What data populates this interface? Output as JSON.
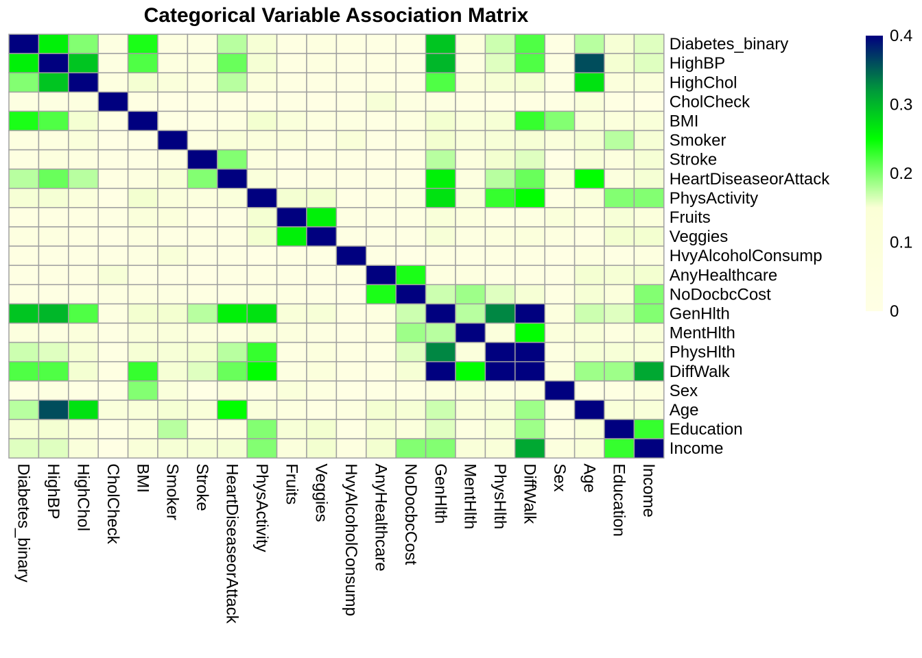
{
  "chart_data": {
    "type": "heatmap",
    "title": "Categorical Variable Association Matrix",
    "variables": [
      "Diabetes_binary",
      "HighBP",
      "HighChol",
      "CholCheck",
      "BMI",
      "Smoker",
      "Stroke",
      "HeartDiseaseorAttack",
      "PhysActivity",
      "Fruits",
      "Veggies",
      "HvyAlcoholConsump",
      "AnyHealthcare",
      "NoDocbcCost",
      "GenHlth",
      "MentHlth",
      "PhysHlth",
      "DiffWalk",
      "Sex",
      "Age",
      "Education",
      "Income"
    ],
    "matrix": [
      [
        0.4,
        0.26,
        0.2,
        0.05,
        0.24,
        0.06,
        0.05,
        0.18,
        0.12,
        0.04,
        0.06,
        0.04,
        0.03,
        0.03,
        0.29,
        0.07,
        0.17,
        0.22,
        0.03,
        0.18,
        0.12,
        0.16
      ],
      [
        0.26,
        0.4,
        0.29,
        0.05,
        0.22,
        0.06,
        0.07,
        0.21,
        0.13,
        0.04,
        0.06,
        0.03,
        0.04,
        0.02,
        0.3,
        0.05,
        0.16,
        0.22,
        0.05,
        0.36,
        0.14,
        0.16
      ],
      [
        0.2,
        0.29,
        0.4,
        0.06,
        0.14,
        0.09,
        0.06,
        0.18,
        0.08,
        0.04,
        0.04,
        0.03,
        0.04,
        0.03,
        0.22,
        0.08,
        0.12,
        0.14,
        0.03,
        0.27,
        0.08,
        0.09
      ],
      [
        0.05,
        0.05,
        0.06,
        0.4,
        0.04,
        0.01,
        0.02,
        0.04,
        0.01,
        0.02,
        0.01,
        0.02,
        0.11,
        0.05,
        0.05,
        0.02,
        0.03,
        0.04,
        0.02,
        0.09,
        0.02,
        0.01
      ],
      [
        0.24,
        0.22,
        0.14,
        0.04,
        0.4,
        0.03,
        0.02,
        0.06,
        0.15,
        0.09,
        0.06,
        0.05,
        0.03,
        0.06,
        0.15,
        0.09,
        0.12,
        0.23,
        0.2,
        0.1,
        0.08,
        0.1
      ],
      [
        0.06,
        0.06,
        0.09,
        0.01,
        0.03,
        0.4,
        0.06,
        0.1,
        0.08,
        0.08,
        0.03,
        0.1,
        0.02,
        0.05,
        0.15,
        0.09,
        0.11,
        0.12,
        0.09,
        0.13,
        0.18,
        0.12
      ],
      [
        0.05,
        0.07,
        0.06,
        0.02,
        0.02,
        0.06,
        0.4,
        0.2,
        0.07,
        0.01,
        0.04,
        0.02,
        0.01,
        0.04,
        0.18,
        0.07,
        0.15,
        0.16,
        0.0,
        0.1,
        0.07,
        0.12
      ],
      [
        0.18,
        0.21,
        0.18,
        0.04,
        0.06,
        0.1,
        0.2,
        0.4,
        0.09,
        0.02,
        0.04,
        0.03,
        0.02,
        0.03,
        0.26,
        0.06,
        0.18,
        0.21,
        0.08,
        0.25,
        0.07,
        0.13
      ],
      [
        0.12,
        0.13,
        0.08,
        0.01,
        0.15,
        0.08,
        0.07,
        0.09,
        0.4,
        0.14,
        0.15,
        0.01,
        0.04,
        0.05,
        0.27,
        0.09,
        0.23,
        0.25,
        0.03,
        0.09,
        0.2,
        0.2
      ],
      [
        0.04,
        0.04,
        0.04,
        0.02,
        0.09,
        0.08,
        0.01,
        0.02,
        0.14,
        0.4,
        0.26,
        0.04,
        0.03,
        0.04,
        0.1,
        0.07,
        0.04,
        0.05,
        0.09,
        0.06,
        0.11,
        0.08
      ],
      [
        0.06,
        0.06,
        0.04,
        0.01,
        0.06,
        0.03,
        0.04,
        0.04,
        0.15,
        0.26,
        0.4,
        0.02,
        0.03,
        0.03,
        0.11,
        0.05,
        0.07,
        0.08,
        0.06,
        0.02,
        0.15,
        0.15
      ],
      [
        0.04,
        0.03,
        0.03,
        0.02,
        0.05,
        0.1,
        0.02,
        0.03,
        0.01,
        0.04,
        0.02,
        0.4,
        0.03,
        0.0,
        0.04,
        0.03,
        0.04,
        0.04,
        0.01,
        0.06,
        0.03,
        0.06
      ],
      [
        0.03,
        0.04,
        0.04,
        0.11,
        0.03,
        0.02,
        0.01,
        0.02,
        0.04,
        0.03,
        0.03,
        0.03,
        0.4,
        0.24,
        0.06,
        0.06,
        0.03,
        0.04,
        0.02,
        0.14,
        0.12,
        0.15
      ],
      [
        0.03,
        0.02,
        0.03,
        0.05,
        0.06,
        0.05,
        0.04,
        0.03,
        0.05,
        0.04,
        0.03,
        0.0,
        0.24,
        0.4,
        0.17,
        0.19,
        0.16,
        0.12,
        0.04,
        0.12,
        0.08,
        0.2
      ],
      [
        0.29,
        0.3,
        0.22,
        0.05,
        0.15,
        0.15,
        0.18,
        0.26,
        0.27,
        0.1,
        0.11,
        0.04,
        0.06,
        0.17,
        0.4,
        0.18,
        0.33,
        0.4,
        0.07,
        0.17,
        0.16,
        0.2
      ],
      [
        0.07,
        0.05,
        0.08,
        0.02,
        0.09,
        0.09,
        0.07,
        0.06,
        0.09,
        0.07,
        0.05,
        0.03,
        0.06,
        0.19,
        0.18,
        0.4,
        0.08,
        0.25,
        0.08,
        0.1,
        0.06,
        0.1
      ],
      [
        0.17,
        0.16,
        0.12,
        0.03,
        0.12,
        0.11,
        0.15,
        0.18,
        0.23,
        0.04,
        0.07,
        0.04,
        0.03,
        0.16,
        0.33,
        0.08,
        0.4,
        0.4,
        0.05,
        0.11,
        0.11,
        0.1
      ],
      [
        0.22,
        0.22,
        0.14,
        0.04,
        0.23,
        0.12,
        0.16,
        0.21,
        0.25,
        0.05,
        0.08,
        0.04,
        0.04,
        0.12,
        0.4,
        0.25,
        0.4,
        0.4,
        0.07,
        0.19,
        0.19,
        0.31
      ],
      [
        0.03,
        0.05,
        0.03,
        0.02,
        0.2,
        0.09,
        0.0,
        0.08,
        0.03,
        0.09,
        0.06,
        0.01,
        0.02,
        0.04,
        0.07,
        0.08,
        0.05,
        0.07,
        0.4,
        0.03,
        0.04,
        0.07
      ],
      [
        0.18,
        0.36,
        0.27,
        0.09,
        0.1,
        0.13,
        0.1,
        0.25,
        0.09,
        0.06,
        0.02,
        0.06,
        0.14,
        0.12,
        0.17,
        0.1,
        0.11,
        0.19,
        0.03,
        0.4,
        0.1,
        0.1
      ],
      [
        0.12,
        0.14,
        0.08,
        0.02,
        0.08,
        0.18,
        0.07,
        0.07,
        0.2,
        0.11,
        0.15,
        0.03,
        0.12,
        0.08,
        0.16,
        0.06,
        0.11,
        0.19,
        0.04,
        0.1,
        0.4,
        0.23
      ],
      [
        0.16,
        0.16,
        0.09,
        0.01,
        0.1,
        0.12,
        0.12,
        0.13,
        0.2,
        0.08,
        0.15,
        0.06,
        0.15,
        0.2,
        0.2,
        0.1,
        0.1,
        0.31,
        0.07,
        0.1,
        0.23,
        0.4
      ]
    ],
    "value_range": [
      0,
      0.4
    ],
    "colorbar_ticks": [
      "0",
      "0.1",
      "0.2",
      "0.3",
      "0.4"
    ],
    "colorbar_values": [
      0,
      0.1,
      0.2,
      0.3,
      0.4
    ],
    "color_stops": [
      "#ffffe5",
      "#00ff00",
      "#00007f"
    ],
    "legend_position": "right"
  }
}
